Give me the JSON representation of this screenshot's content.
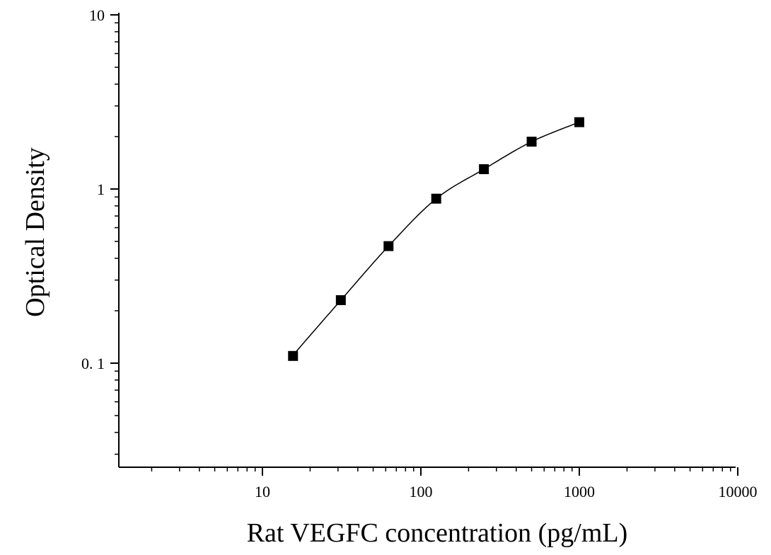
{
  "chart_data": {
    "type": "scatter",
    "xlabel": "Rat VEGFC concentration (pg/mL)",
    "ylabel": "Optical Density",
    "x_scale": "log",
    "y_scale": "log",
    "xlim": [
      1.3,
      10000
    ],
    "ylim": [
      0.027,
      10
    ],
    "x_ticks": [
      10,
      100,
      1000,
      10000
    ],
    "x_tick_labels": [
      "10",
      "100",
      "1000",
      "10000"
    ],
    "y_ticks": [
      0.1,
      1,
      10
    ],
    "y_tick_labels": [
      "0. 1",
      "1",
      "10"
    ],
    "grid": false,
    "series": [
      {
        "points": [
          {
            "x": 15.6,
            "y": 0.11
          },
          {
            "x": 31.25,
            "y": 0.23
          },
          {
            "x": 62.5,
            "y": 0.47
          },
          {
            "x": 125,
            "y": 0.88
          },
          {
            "x": 250,
            "y": 1.3
          },
          {
            "x": 500,
            "y": 1.87
          },
          {
            "x": 1000,
            "y": 2.42
          }
        ],
        "marker": "square",
        "color": "#000000"
      }
    ],
    "fit_curve": {
      "type": "smooth",
      "color": "#000000",
      "x_range": [
        16.5,
        1000
      ]
    }
  }
}
